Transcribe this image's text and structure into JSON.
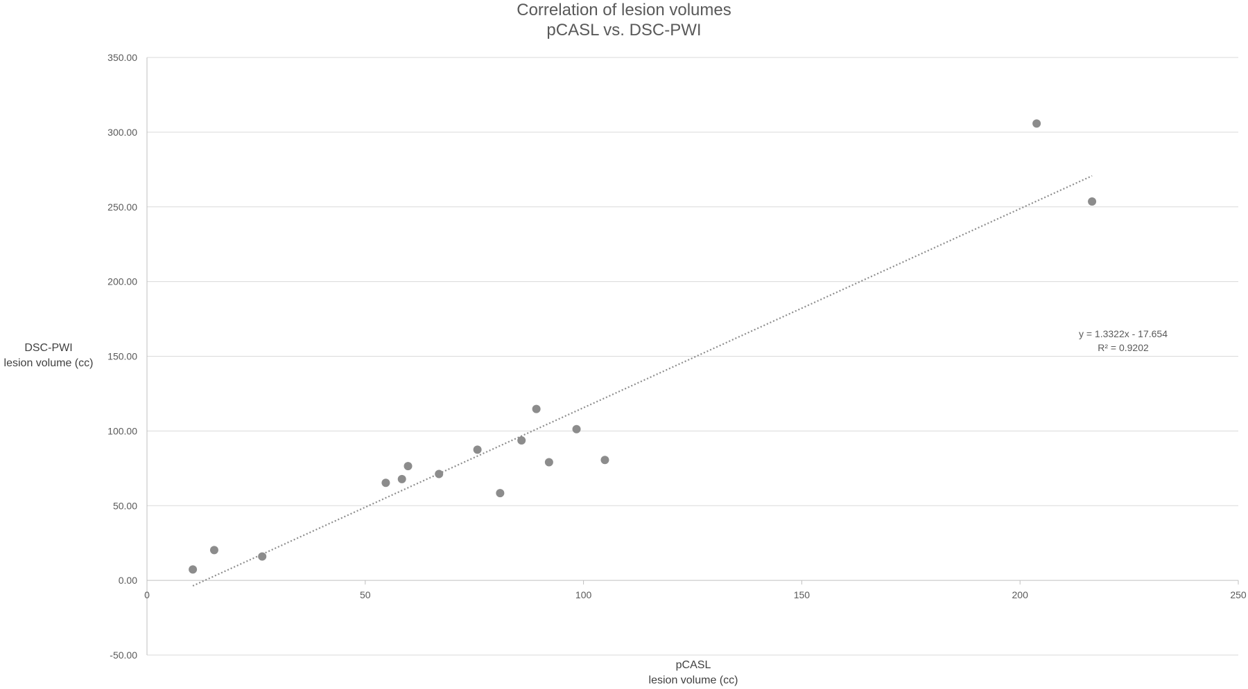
{
  "chart_data": {
    "type": "scatter",
    "title": "Correlation of lesion volumes",
    "subtitle": "pCASL vs. DSC-PWI",
    "xlabel": [
      "pCASL",
      "lesion volume (cc)"
    ],
    "ylabel": [
      "DSC-PWI",
      "lesion volume (cc)"
    ],
    "xlim": [
      0,
      250
    ],
    "ylim": [
      -50,
      350
    ],
    "x_ticks": [
      {
        "value": 0,
        "label": "0"
      },
      {
        "value": 50,
        "label": "50"
      },
      {
        "value": 100,
        "label": "100"
      },
      {
        "value": 150,
        "label": "150"
      },
      {
        "value": 200,
        "label": "200"
      },
      {
        "value": 250,
        "label": "250"
      }
    ],
    "y_ticks": [
      {
        "value": -50,
        "label": "-50.00"
      },
      {
        "value": 0,
        "label": "0.00"
      },
      {
        "value": 50,
        "label": "50.00"
      },
      {
        "value": 100,
        "label": "100.00"
      },
      {
        "value": 150,
        "label": "150.00"
      },
      {
        "value": 200,
        "label": "200.00"
      },
      {
        "value": 250,
        "label": "250.00"
      },
      {
        "value": 300,
        "label": "300.00"
      },
      {
        "value": 350,
        "label": "350.00"
      }
    ],
    "grid": true,
    "points": [
      {
        "x": 10.5,
        "y": 7.3
      },
      {
        "x": 15.4,
        "y": 20.3
      },
      {
        "x": 26.4,
        "y": 16.0
      },
      {
        "x": 54.7,
        "y": 65.3
      },
      {
        "x": 58.4,
        "y": 67.8
      },
      {
        "x": 59.8,
        "y": 76.5
      },
      {
        "x": 66.9,
        "y": 71.2
      },
      {
        "x": 75.7,
        "y": 87.5
      },
      {
        "x": 80.9,
        "y": 58.4
      },
      {
        "x": 85.8,
        "y": 93.7
      },
      {
        "x": 89.2,
        "y": 114.7
      },
      {
        "x": 92.1,
        "y": 79.1
      },
      {
        "x": 98.4,
        "y": 101.2
      },
      {
        "x": 104.9,
        "y": 80.6
      },
      {
        "x": 203.8,
        "y": 305.8
      },
      {
        "x": 216.5,
        "y": 253.6
      }
    ],
    "trendline": {
      "type": "linear",
      "slope": 1.3322,
      "intercept": -17.654,
      "x_range": [
        10.5,
        216.5
      ],
      "style": "dotted",
      "equation": "y = 1.3322x - 17.654",
      "r_squared": "R² = 0.9202"
    },
    "colors": {
      "point": "#8c8c8c",
      "trendline": "#8c8c8c",
      "grid": "#d9d9d9",
      "axis": "#bfbfbf"
    }
  }
}
